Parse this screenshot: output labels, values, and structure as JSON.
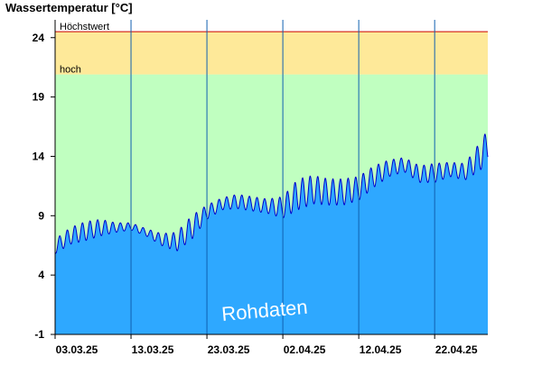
{
  "chart_data": {
    "type": "area",
    "title": "Wassertemperatur [°C]",
    "ylim": [
      -1,
      25.5
    ],
    "yticks": [
      -1,
      4,
      9,
      14,
      19,
      24
    ],
    "xlim": [
      "2025-03-03",
      "2025-04-29"
    ],
    "xticks": [
      "2025-03-03",
      "2025-03-13",
      "2025-03-23",
      "2025-04-02",
      "2025-04-12",
      "2025-04-22"
    ],
    "xtick_labels": [
      "03.03.25",
      "13.03.25",
      "23.03.25",
      "02.04.25",
      "12.04.25",
      "22.04.25"
    ],
    "grid": "vertical lines at date ticks",
    "thresholds": [
      {
        "label": "Höchstwert",
        "value": 24.5,
        "color": "#cc0000"
      },
      {
        "label": "hoch",
        "value": 20.9,
        "color": "#fee999"
      }
    ],
    "zone_colors": {
      "normal": "#c0ffc0",
      "hoch": "#fee999",
      "area_fill": "#2ea8ff",
      "area_line": "#0000cc"
    },
    "annotation": "Rohdaten",
    "series": [
      {
        "x": [
          "2025-03-03",
          "2025-03-05",
          "2025-03-07",
          "2025-03-09",
          "2025-03-11",
          "2025-03-13",
          "2025-03-15",
          "2025-03-17",
          "2025-03-19",
          "2025-03-21",
          "2025-03-23",
          "2025-03-25",
          "2025-03-27",
          "2025-03-29",
          "2025-03-31",
          "2025-04-02",
          "2025-04-04",
          "2025-04-06",
          "2025-04-08",
          "2025-04-10",
          "2025-04-12",
          "2025-04-14",
          "2025-04-16",
          "2025-04-18",
          "2025-04-20",
          "2025-04-22",
          "2025-04-24",
          "2025-04-26",
          "2025-04-28",
          "2025-04-29"
        ],
        "y_mean": [
          6.4,
          7.3,
          7.7,
          8.0,
          8.0,
          8.1,
          7.6,
          7.0,
          6.8,
          8.0,
          9.3,
          10.0,
          10.2,
          10.0,
          9.8,
          9.7,
          10.8,
          11.2,
          11.0,
          11.0,
          11.3,
          12.3,
          13.0,
          13.3,
          12.5,
          12.6,
          12.9,
          12.7,
          14.0,
          15.0
        ],
        "y_amplitude": [
          0.6,
          0.7,
          0.8,
          0.7,
          0.4,
          0.3,
          0.3,
          0.5,
          0.8,
          1.0,
          0.6,
          0.5,
          0.6,
          0.6,
          0.6,
          0.9,
          1.3,
          1.2,
          1.1,
          1.1,
          1.0,
          0.9,
          0.7,
          0.6,
          0.7,
          0.8,
          0.6,
          0.7,
          1.2,
          1.3
        ]
      }
    ]
  }
}
